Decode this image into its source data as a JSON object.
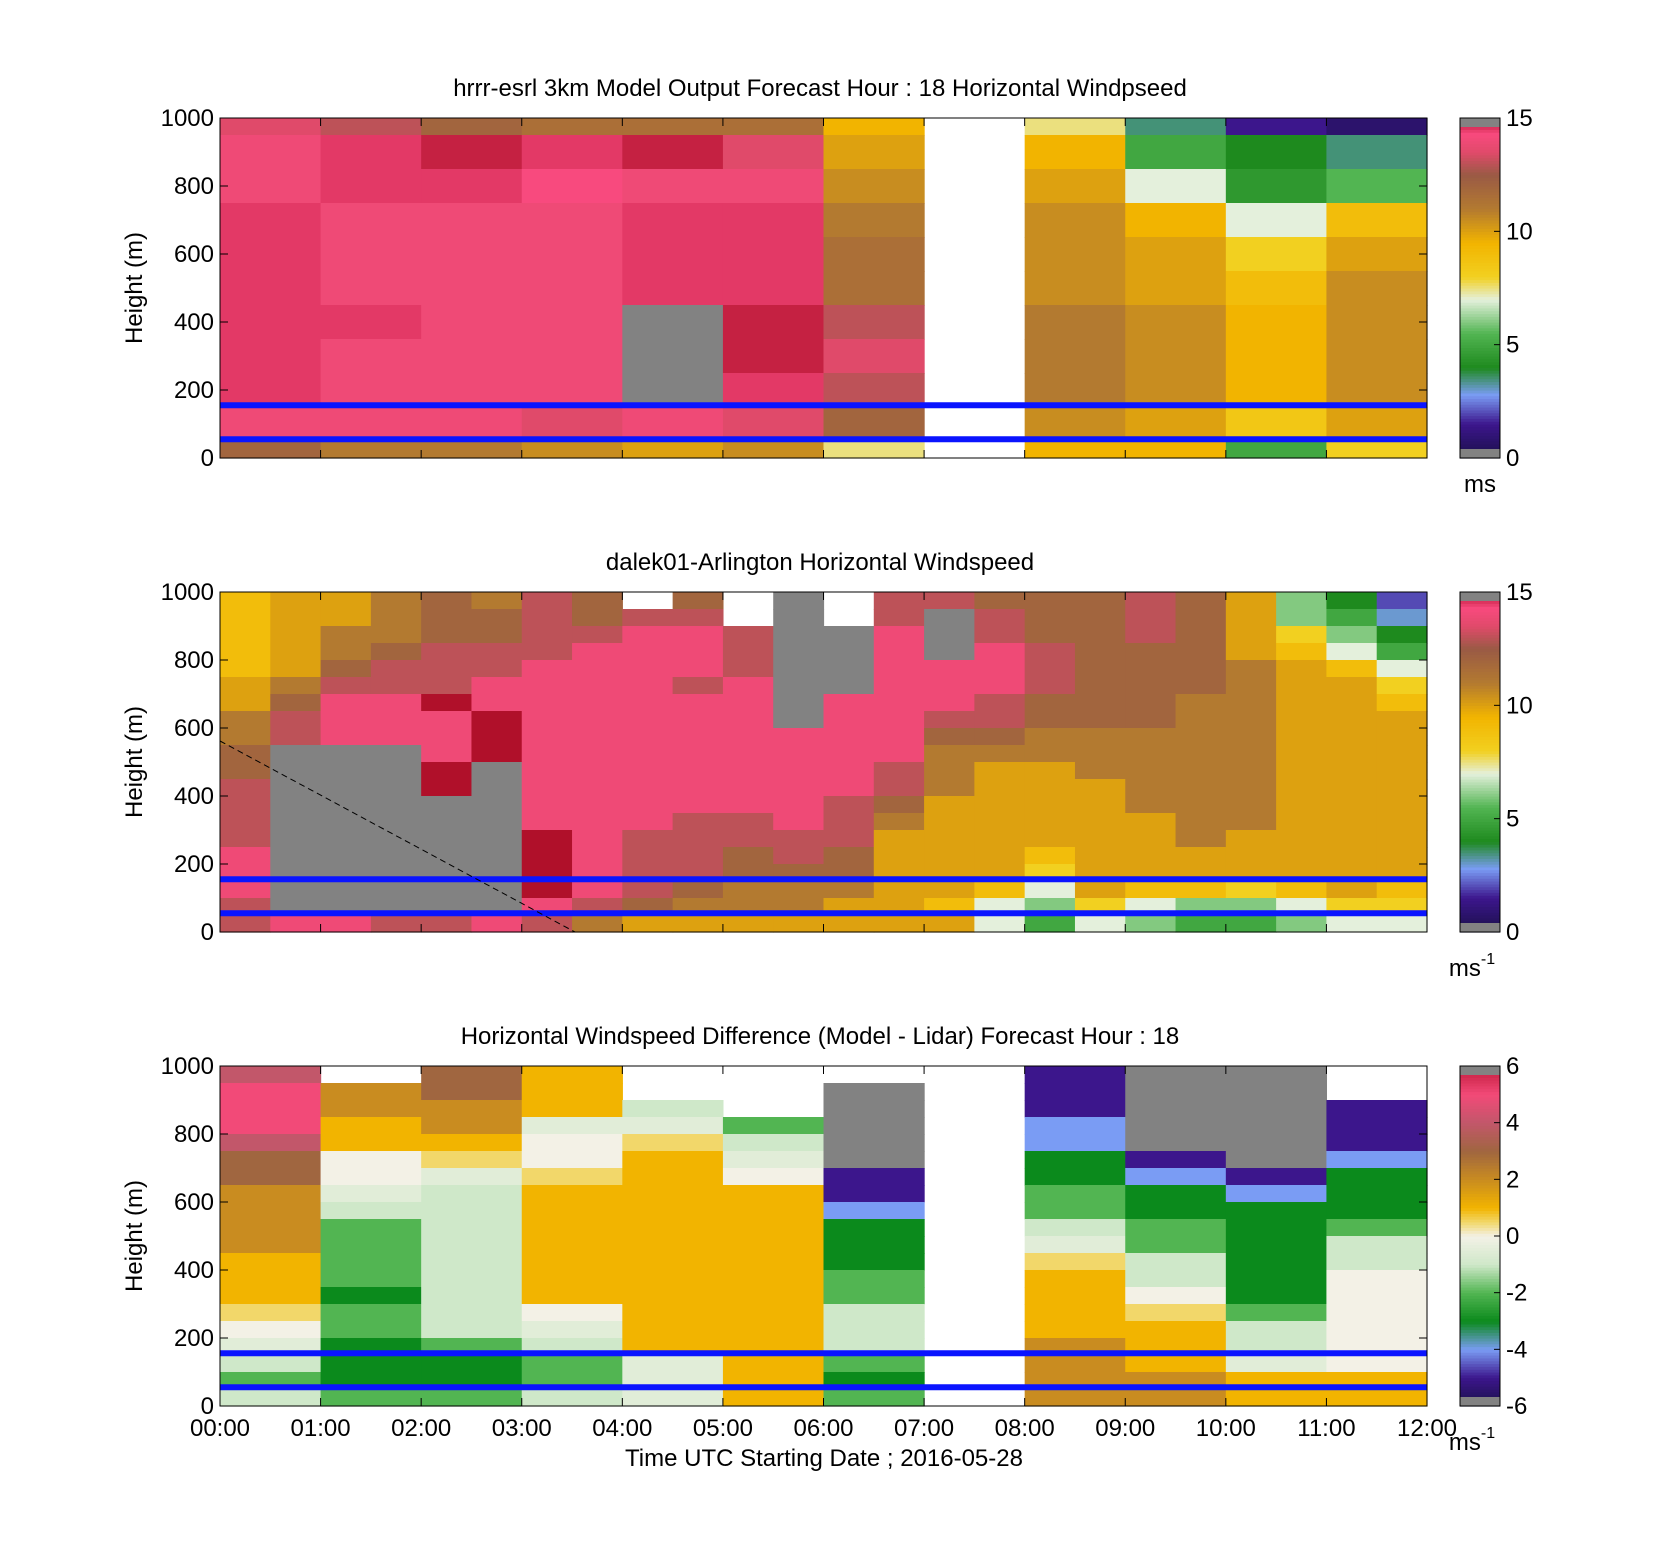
{
  "figure": {
    "xlabel": "Time UTC  Starting Date ; 2016-05-28",
    "x_ticks": [
      "00:00",
      "01:00",
      "02:00",
      "03:00",
      "04:00",
      "05:00",
      "06:00",
      "07:00",
      "08:00",
      "09:00",
      "10:00",
      "11:00",
      "12:00"
    ]
  },
  "chart_data": [
    {
      "type": "heatmap",
      "title": "hrrr-esrl 3km Model Output   Forecast Hour : 18 Horizontal Windpseed",
      "ylabel": "Height (m)",
      "xlim": [
        0,
        12
      ],
      "ylim": [
        0,
        1000
      ],
      "y_ticks": [
        "0",
        "200",
        "400",
        "600",
        "800",
        "1000"
      ],
      "colorbar": {
        "ticks": [
          "0",
          "5",
          "10",
          "15"
        ],
        "range": [
          0,
          15
        ],
        "unit": "ms",
        "unit_sup": ""
      },
      "ref_lines_m": [
        155,
        55
      ],
      "columns_hours": [
        0,
        1,
        2,
        3,
        4,
        5,
        6,
        7,
        8,
        9,
        10,
        11
      ],
      "rows_m": [
        1000,
        900,
        800,
        700,
        600,
        500,
        400,
        300,
        200,
        100,
        0
      ],
      "values": [
        [
          13.5,
          13.0,
          12.0,
          11.5,
          11.5,
          11.5,
          9.5,
          null,
          7.5,
          3.5,
          1.5,
          0.8
        ],
        [
          14.0,
          14.5,
          14.8,
          14.5,
          14.8,
          13.5,
          10.0,
          null,
          9.5,
          5.0,
          4.0,
          3.5
        ],
        [
          14.0,
          14.5,
          14.5,
          14.3,
          14.0,
          14.0,
          10.5,
          null,
          10.0,
          7.0,
          4.5,
          5.5
        ],
        [
          14.5,
          14.0,
          14.0,
          14.0,
          14.5,
          14.5,
          11.0,
          null,
          10.5,
          9.5,
          7.0,
          9.0
        ],
        [
          14.5,
          14.0,
          14.0,
          14.0,
          14.5,
          14.5,
          11.5,
          null,
          10.5,
          10.0,
          8.0,
          10.0
        ],
        [
          14.5,
          14.0,
          14.0,
          14.0,
          14.5,
          14.5,
          11.5,
          null,
          10.5,
          10.0,
          9.0,
          10.5
        ],
        [
          14.5,
          14.5,
          14.0,
          14.0,
          -1,
          14.8,
          13.0,
          null,
          11.0,
          10.5,
          9.5,
          10.5
        ],
        [
          14.5,
          14.0,
          14.0,
          14.0,
          -1,
          14.8,
          13.5,
          null,
          11.0,
          10.5,
          9.5,
          10.5
        ],
        [
          14.5,
          14.0,
          14.0,
          14.0,
          -1,
          14.5,
          13.0,
          null,
          11.0,
          10.5,
          9.5,
          10.5
        ],
        [
          14.0,
          14.0,
          14.0,
          13.5,
          14.0,
          13.5,
          12.0,
          null,
          10.5,
          10.0,
          8.5,
          10.0
        ],
        [
          12.0,
          11.0,
          11.0,
          10.5,
          10.0,
          10.5,
          7.5,
          null,
          9.5,
          9.5,
          5.0,
          8.0
        ]
      ]
    },
    {
      "type": "heatmap",
      "title": "dalek01-Arlington  Horizontal Windspeed",
      "ylabel": "Height (m)",
      "xlim": [
        0,
        12
      ],
      "ylim": [
        0,
        1000
      ],
      "y_ticks": [
        "0",
        "200",
        "400",
        "600",
        "800",
        "1000"
      ],
      "colorbar": {
        "ticks": [
          "0",
          "5",
          "10",
          "15"
        ],
        "range": [
          0,
          15
        ],
        "unit": "ms",
        "unit_sup": "-1"
      },
      "ref_lines_m": [
        155,
        55
      ],
      "columns_hours": [
        0,
        0.5,
        1,
        1.5,
        2,
        2.5,
        3,
        3.5,
        4,
        4.5,
        5,
        5.5,
        6,
        6.5,
        7,
        7.5,
        8,
        8.5,
        9,
        9.5,
        10,
        10.5,
        11,
        11.5
      ],
      "rows_m": [
        975,
        925,
        875,
        825,
        775,
        725,
        675,
        625,
        575,
        525,
        475,
        425,
        375,
        325,
        275,
        225,
        175,
        125,
        75,
        25
      ],
      "values": [
        [
          9,
          10,
          10,
          11,
          12,
          11,
          13,
          12,
          null,
          12,
          null,
          -1,
          null,
          13,
          13,
          12,
          12,
          12,
          13,
          12,
          10,
          6,
          4,
          2
        ],
        [
          9,
          10,
          10,
          11,
          12,
          12,
          13,
          12,
          13,
          13,
          null,
          -1,
          null,
          13,
          -1,
          13,
          12,
          12,
          13,
          12,
          10,
          6,
          5,
          3
        ],
        [
          9,
          10,
          11,
          11,
          12,
          12,
          13,
          13,
          14,
          14,
          13,
          -1,
          -1,
          14,
          -1,
          13,
          12,
          12,
          13,
          12,
          10,
          8,
          6,
          4
        ],
        [
          9,
          10,
          11,
          12,
          13,
          13,
          13,
          14,
          14,
          14,
          13,
          -1,
          -1,
          14,
          -1,
          14,
          13,
          12,
          12,
          12,
          10,
          9,
          7,
          5
        ],
        [
          9,
          10,
          12,
          13,
          13,
          13,
          14,
          14,
          14,
          14,
          13,
          -1,
          -1,
          14,
          14,
          14,
          13,
          12,
          12,
          12,
          11,
          10,
          9,
          7
        ],
        [
          10,
          11,
          13,
          13,
          13,
          14,
          14,
          14,
          14,
          13,
          14,
          -1,
          -1,
          14,
          14,
          14,
          13,
          12,
          12,
          12,
          11,
          10,
          10,
          8
        ],
        [
          10,
          12,
          14,
          14,
          15,
          14,
          14,
          14,
          14,
          14,
          14,
          -1,
          14,
          14,
          14,
          13,
          12,
          12,
          12,
          11,
          11,
          10,
          10,
          9
        ],
        [
          11,
          13,
          14,
          14,
          14,
          15,
          14,
          14,
          14,
          14,
          14,
          -1,
          14,
          14,
          13,
          13,
          12,
          12,
          12,
          11,
          11,
          10,
          10,
          10
        ],
        [
          11,
          13,
          14,
          14,
          14,
          15,
          14,
          14,
          14,
          14,
          14,
          14,
          14,
          14,
          12,
          12,
          11,
          11,
          11,
          11,
          11,
          10,
          10,
          10
        ],
        [
          12,
          -1,
          -1,
          -1,
          14,
          15,
          14,
          14,
          14,
          14,
          14,
          14,
          14,
          14,
          11,
          11,
          11,
          11,
          11,
          11,
          11,
          10,
          10,
          10
        ],
        [
          12,
          -1,
          -1,
          -1,
          15,
          -1,
          14,
          14,
          14,
          14,
          14,
          14,
          14,
          13,
          11,
          10,
          10,
          11,
          11,
          11,
          11,
          10,
          10,
          10
        ],
        [
          13,
          -1,
          -1,
          -1,
          15,
          -1,
          14,
          14,
          14,
          14,
          14,
          14,
          14,
          13,
          11,
          10,
          10,
          10,
          11,
          11,
          11,
          10,
          10,
          10
        ],
        [
          13,
          -1,
          -1,
          -1,
          -1,
          -1,
          14,
          14,
          14,
          14,
          14,
          14,
          13,
          12,
          10,
          10,
          10,
          10,
          11,
          11,
          11,
          10,
          10,
          10
        ],
        [
          13,
          -1,
          -1,
          -1,
          -1,
          -1,
          14,
          14,
          14,
          13,
          13,
          14,
          13,
          11,
          10,
          10,
          10,
          10,
          10,
          11,
          11,
          10,
          10,
          10
        ],
        [
          13,
          -1,
          -1,
          -1,
          -1,
          -1,
          15,
          14,
          13,
          13,
          13,
          13,
          13,
          10,
          10,
          10,
          10,
          10,
          10,
          11,
          10,
          10,
          10,
          10
        ],
        [
          14,
          -1,
          -1,
          -1,
          -1,
          -1,
          15,
          14,
          13,
          13,
          12,
          13,
          12,
          10,
          10,
          10,
          9,
          10,
          10,
          10,
          10,
          10,
          10,
          10
        ],
        [
          14,
          -1,
          -1,
          -1,
          -1,
          -1,
          15,
          14,
          13,
          13,
          12,
          12,
          12,
          10,
          10,
          10,
          8,
          10,
          10,
          10,
          10,
          10,
          10,
          10
        ],
        [
          14,
          -1,
          -1,
          -1,
          -1,
          -1,
          15,
          14,
          13,
          12,
          11,
          11,
          11,
          10,
          10,
          9,
          7,
          10,
          9,
          9,
          8,
          9,
          10,
          9
        ],
        [
          13,
          -1,
          -1,
          -1,
          -1,
          -1,
          14,
          13,
          12,
          11,
          11,
          11,
          10,
          10,
          9,
          7,
          6,
          8,
          7,
          6,
          6,
          7,
          8,
          8
        ],
        [
          13,
          14,
          14,
          13,
          13,
          14,
          13,
          11,
          10,
          10,
          10,
          10,
          10,
          10,
          10,
          7,
          5,
          7,
          6,
          5,
          5,
          6,
          7,
          7
        ]
      ]
    },
    {
      "type": "heatmap",
      "title": "Horizontal Windspeed Difference (Model - Lidar) Forecast Hour : 18",
      "ylabel": "Height (m)",
      "xlim": [
        0,
        12
      ],
      "ylim": [
        0,
        1000
      ],
      "y_ticks": [
        "0",
        "200",
        "400",
        "600",
        "800",
        "1000"
      ],
      "colorbar": {
        "ticks": [
          "-6",
          "-4",
          "-2",
          "0",
          "2",
          "4",
          "6"
        ],
        "range": [
          -6,
          6
        ],
        "unit": "ms",
        "unit_sup": "-1"
      },
      "ref_lines_m": [
        155,
        55
      ],
      "columns_hours": [
        0,
        1,
        2,
        3,
        4,
        5,
        6,
        7,
        8,
        9,
        10,
        11
      ],
      "rows_m": [
        975,
        925,
        875,
        825,
        775,
        725,
        675,
        625,
        575,
        525,
        475,
        425,
        375,
        325,
        275,
        225,
        175,
        125,
        75,
        25
      ],
      "values": [
        [
          4,
          null,
          3,
          1,
          null,
          null,
          null,
          null,
          -5,
          -99,
          -99,
          null
        ],
        [
          5,
          2,
          3,
          1,
          null,
          null,
          -99,
          null,
          -5,
          -99,
          -99,
          null
        ],
        [
          5,
          2,
          2,
          1,
          -1,
          null,
          -99,
          null,
          -5,
          -99,
          -99,
          -5
        ],
        [
          5,
          1,
          2,
          -0.5,
          -0.5,
          -2,
          -99,
          null,
          -4,
          -99,
          -99,
          -5
        ],
        [
          4,
          1,
          1,
          0,
          0.5,
          -1,
          -99,
          null,
          -4,
          -99,
          -99,
          -5
        ],
        [
          3,
          0,
          0.5,
          0,
          1,
          -0.5,
          -99,
          null,
          -3,
          -5,
          -99,
          -4
        ],
        [
          3,
          0,
          -0.5,
          0.5,
          1,
          0,
          -5,
          null,
          -3,
          -4,
          -5,
          -3
        ],
        [
          2,
          -0.5,
          -1,
          1,
          1,
          1,
          -5,
          null,
          -2,
          -3,
          -4,
          -3
        ],
        [
          2,
          -1,
          -1,
          1,
          1,
          1,
          -4,
          null,
          -2,
          -3,
          -3,
          -3
        ],
        [
          2,
          -2,
          -1,
          1,
          1,
          1,
          -3,
          null,
          -1,
          -2,
          -3,
          -2
        ],
        [
          2,
          -2,
          -1,
          1,
          1,
          1,
          -3,
          null,
          -0.5,
          -2,
          -3,
          -1
        ],
        [
          1,
          -2,
          -1,
          1,
          1,
          1,
          -3,
          null,
          0.5,
          -1,
          -3,
          -1
        ],
        [
          1,
          -2,
          -1,
          1,
          1,
          1,
          -2,
          null,
          1,
          -1,
          -3,
          0
        ],
        [
          1,
          -3,
          -1,
          1,
          1,
          1,
          -2,
          null,
          1,
          0,
          -3,
          0
        ],
        [
          0.5,
          -2,
          -1,
          0,
          1,
          1,
          -1,
          null,
          1,
          0.5,
          -2,
          0
        ],
        [
          0,
          -2,
          -1,
          -0.5,
          1,
          1,
          -1,
          null,
          1,
          1,
          -1,
          0
        ],
        [
          -0.5,
          -3,
          -2,
          -1,
          1,
          1,
          -1,
          null,
          2,
          1,
          -1,
          0
        ],
        [
          -1,
          -3,
          -3,
          -2,
          -0.5,
          1,
          -2,
          null,
          2,
          1,
          -0.5,
          0
        ],
        [
          -2,
          -3,
          -3,
          -2,
          -0.5,
          1,
          -3,
          null,
          2,
          2,
          1,
          1
        ],
        [
          -1,
          -2,
          -2,
          -1,
          -0.5,
          1,
          -2,
          null,
          2,
          2,
          1,
          1
        ]
      ]
    }
  ]
}
